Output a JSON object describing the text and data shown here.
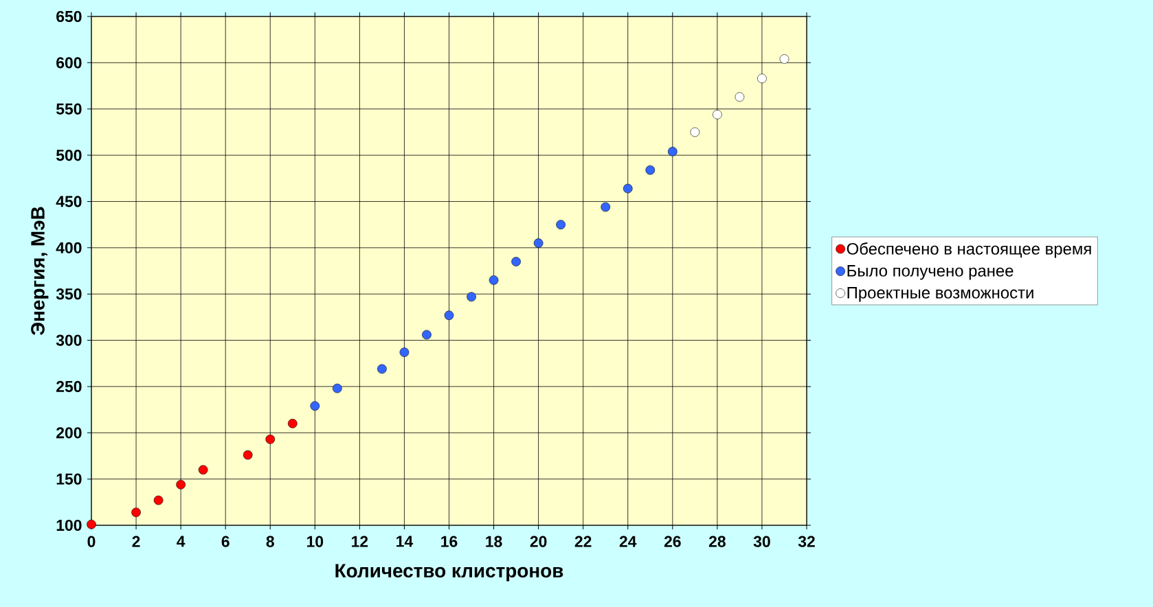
{
  "chart_data": {
    "type": "scatter",
    "xlabel": "Количество клистронов",
    "ylabel": "Энергия, МэВ",
    "series": [
      {
        "name": "Обеспечено в настоящее время",
        "color": "#ff0000",
        "x": [
          0,
          2,
          3,
          4,
          5,
          7,
          8,
          9
        ],
        "values": [
          101,
          114,
          127,
          144,
          160,
          176,
          193,
          210
        ]
      },
      {
        "name": "Было получено ранее",
        "color": "#3366ff",
        "x": [
          10,
          11,
          13,
          14,
          15,
          16,
          17,
          18,
          19,
          20,
          21,
          23,
          24,
          25,
          26
        ],
        "values": [
          229,
          248,
          269,
          287,
          306,
          327,
          347,
          365,
          385,
          405,
          425,
          444,
          464,
          484,
          504
        ]
      },
      {
        "name": "Проектные возможности",
        "color": "#ffffff",
        "x": [
          27,
          28,
          29,
          30,
          31
        ],
        "values": [
          525,
          544,
          563,
          583,
          604
        ]
      }
    ],
    "xlim": [
      0,
      32
    ],
    "ylim": [
      100,
      650
    ],
    "xticks": [
      0,
      2,
      4,
      6,
      8,
      10,
      12,
      14,
      16,
      18,
      20,
      22,
      24,
      26,
      28,
      30,
      32
    ],
    "yticks": [
      100,
      150,
      200,
      250,
      300,
      350,
      400,
      450,
      500,
      550,
      600,
      650
    ],
    "grid": true,
    "legend": "right",
    "marker": "circle"
  }
}
